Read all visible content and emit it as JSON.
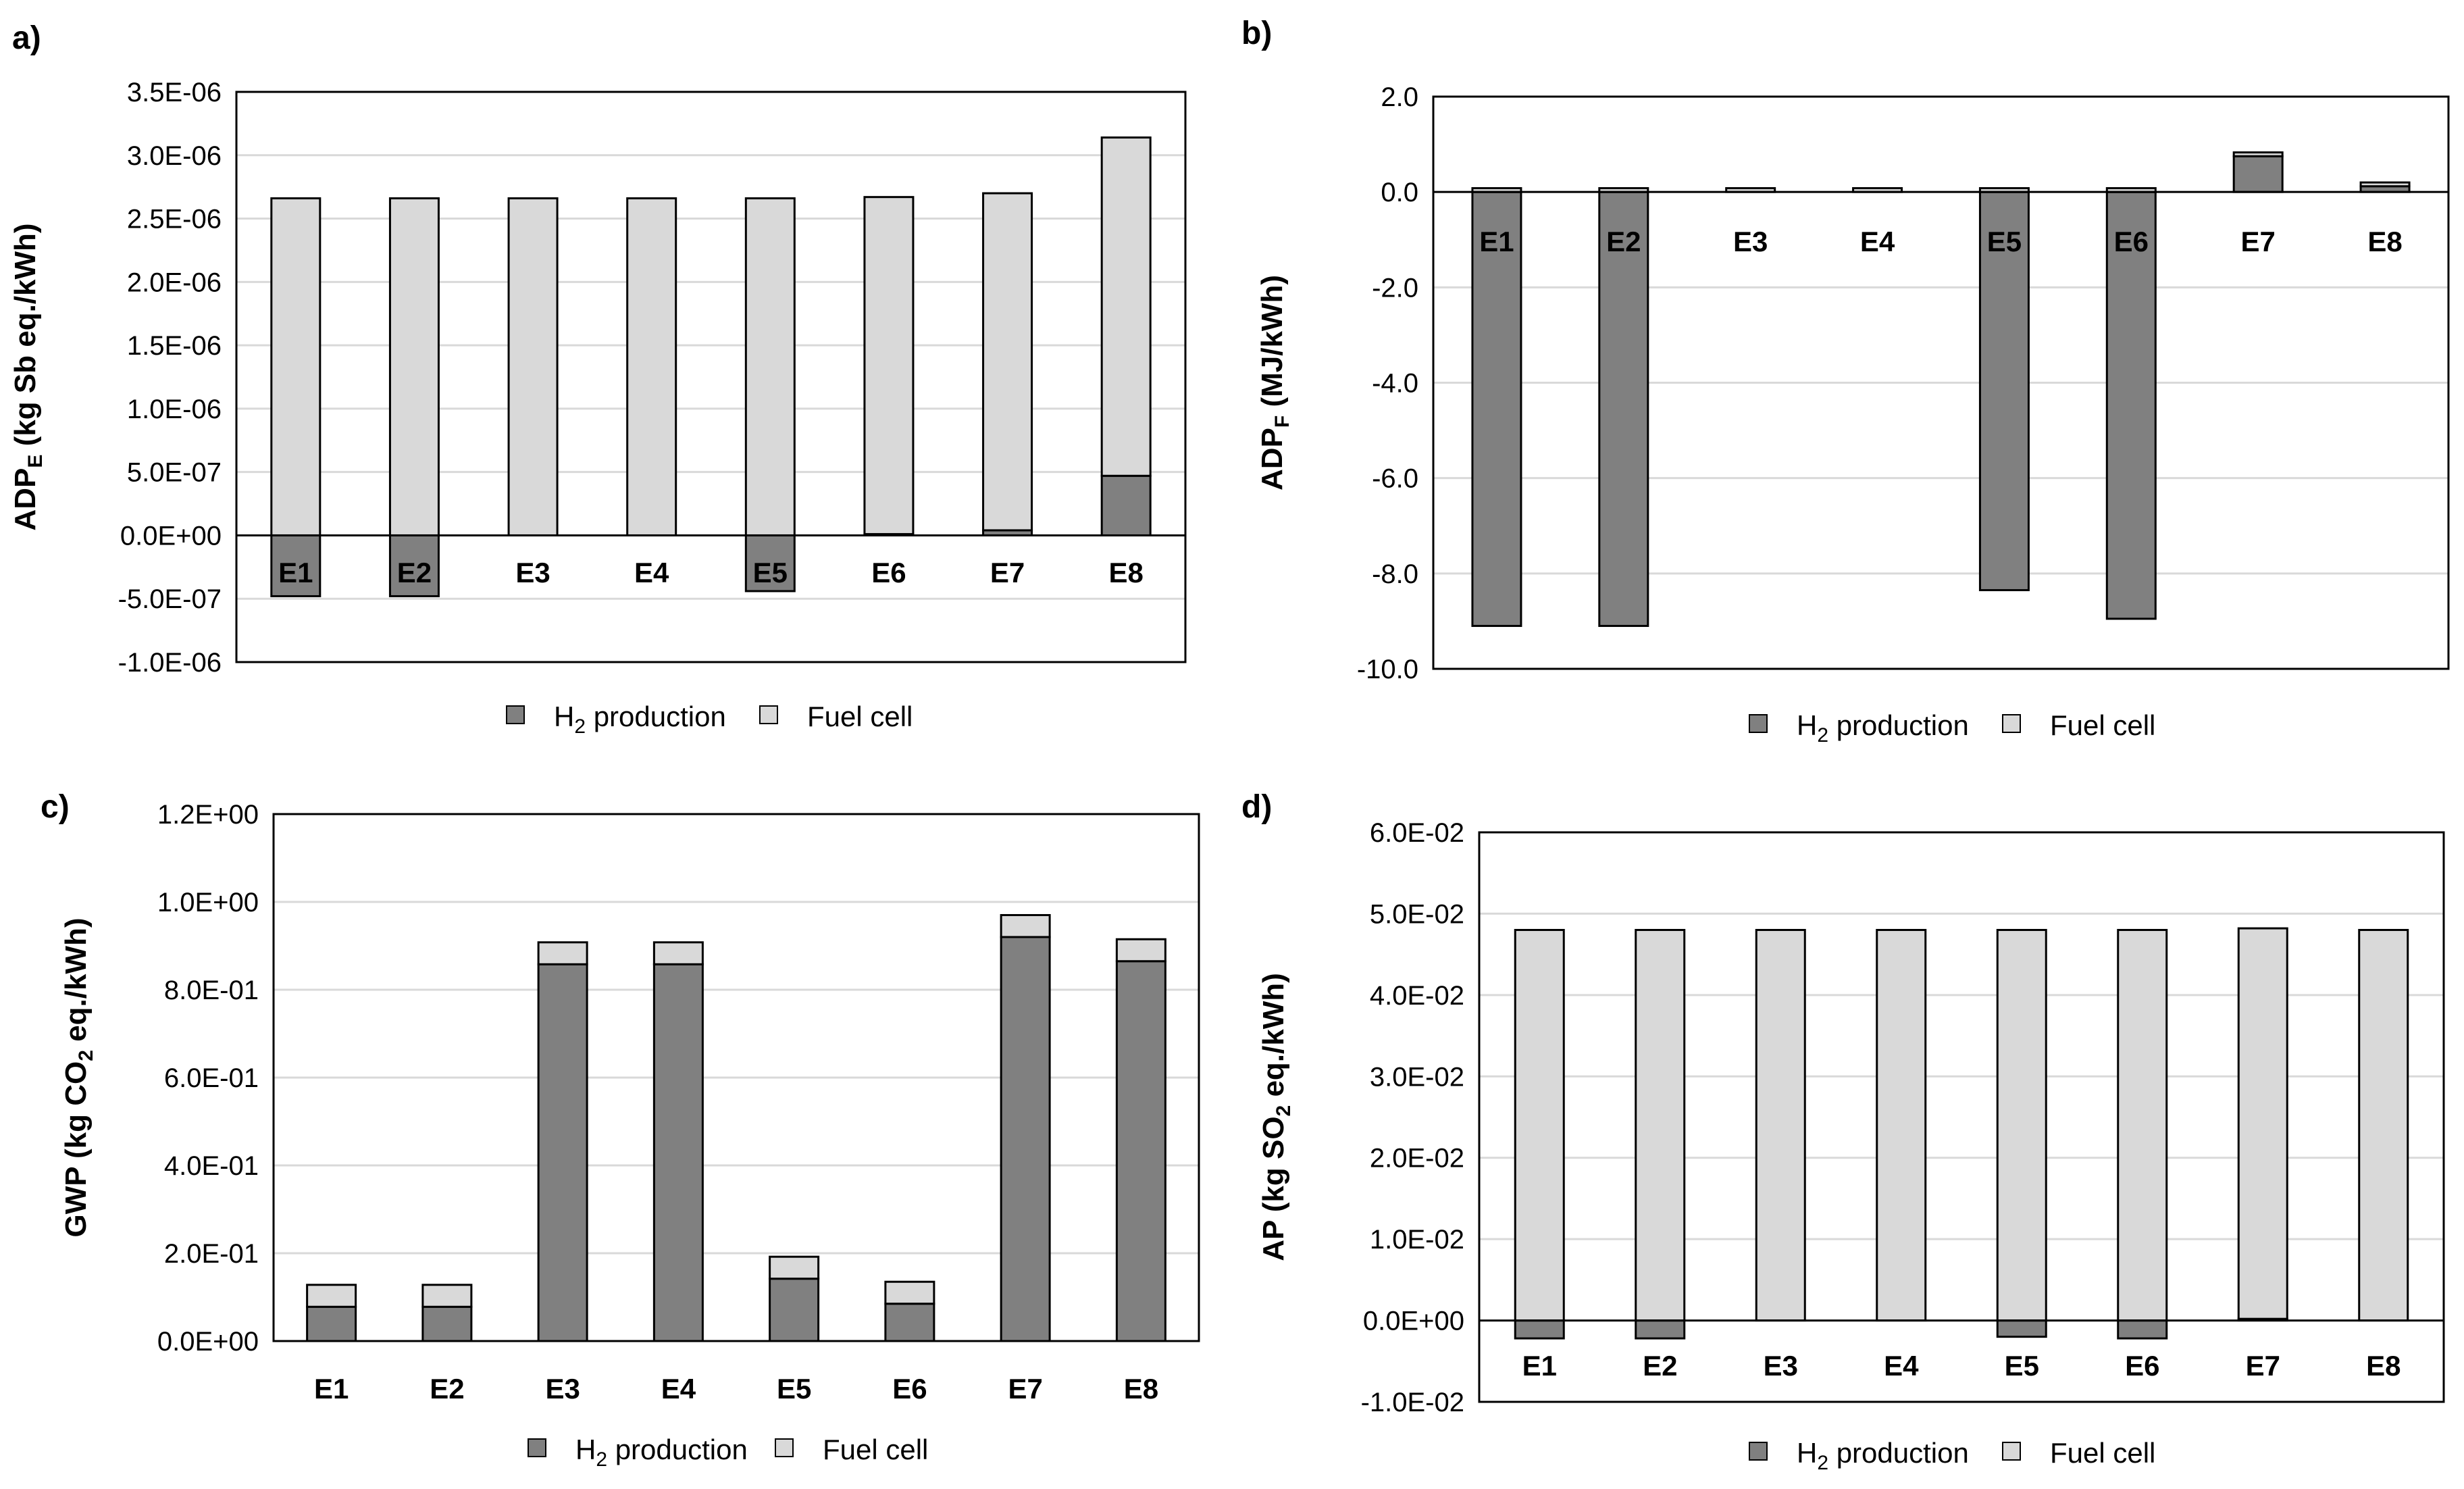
{
  "colors": {
    "h2": "#808080",
    "fc": "#d9d9d9",
    "grid": "#d9d9d9",
    "axis": "#000000"
  },
  "chart_data": [
    {
      "type": "bar",
      "stacked": true,
      "panel": "a)",
      "ylabel_main": "ADP",
      "ylabel_sub": "E",
      "ylabel_rest": " (kg Sb eq./kWh)",
      "ylim": [
        -1e-06,
        3.5e-06
      ],
      "yticks": [
        -1e-06,
        -5e-07,
        0,
        5e-07,
        1e-06,
        1.5e-06,
        2e-06,
        2.5e-06,
        3e-06,
        3.5e-06
      ],
      "ytick_labels": [
        "-1.0E-06",
        "-5.0E-07",
        "0.0E+00",
        "5.0E-07",
        "1.0E-06",
        "1.5E-06",
        "2.0E-06",
        "2.5E-06",
        "3.0E-06",
        "3.5E-06"
      ],
      "categories": [
        "E1",
        "E2",
        "E3",
        "E4",
        "E5",
        "E6",
        "E7",
        "E8"
      ],
      "category_label_pos": "inside",
      "series": [
        {
          "name": "H2 production",
          "values": [
            -4.8e-07,
            -4.8e-07,
            0,
            0,
            -4.4e-07,
            1e-08,
            4e-08,
            4.7e-07
          ]
        },
        {
          "name": "Fuel cell",
          "values": [
            2.66e-06,
            2.66e-06,
            2.66e-06,
            2.66e-06,
            2.66e-06,
            2.66e-06,
            2.66e-06,
            2.67e-06
          ]
        }
      ],
      "legend": {
        "h2_main": "H",
        "h2_sub": "2",
        "h2_rest": " production",
        "fc": "Fuel cell",
        "position": "bottom"
      }
    },
    {
      "type": "bar",
      "stacked": true,
      "panel": "b)",
      "ylabel_main": "ADP",
      "ylabel_sub": "F",
      "ylabel_rest": " (MJ/kWh)",
      "ylim": [
        -10.0,
        2.0
      ],
      "yticks": [
        -10,
        -8,
        -6,
        -4,
        -2,
        0,
        2
      ],
      "ytick_labels": [
        "-10.0",
        "-8.0",
        "-6.0",
        "-4.0",
        "-2.0",
        "0.0",
        "2.0"
      ],
      "categories": [
        "E1",
        "E2",
        "E3",
        "E4",
        "E5",
        "E6",
        "E7",
        "E8"
      ],
      "category_label_pos": "inside",
      "series": [
        {
          "name": "H2 production",
          "values": [
            -9.1,
            -9.1,
            0,
            0,
            -8.35,
            -8.95,
            0.75,
            0.12
          ]
        },
        {
          "name": "Fuel cell",
          "values": [
            0.08,
            0.08,
            0.08,
            0.08,
            0.08,
            0.08,
            0.08,
            0.08
          ]
        }
      ],
      "legend": {
        "h2_main": "H",
        "h2_sub": "2",
        "h2_rest": " production",
        "fc": "Fuel cell",
        "position": "bottom"
      }
    },
    {
      "type": "bar",
      "stacked": true,
      "panel": "c)",
      "ylabel_main": "GWP (kg CO",
      "ylabel_sub": "2",
      "ylabel_rest": " eq./kWh)",
      "ylim": [
        0,
        1.2
      ],
      "yticks": [
        0,
        0.2,
        0.4,
        0.6,
        0.8,
        1.0,
        1.2
      ],
      "ytick_labels": [
        "0.0E+00",
        "2.0E-01",
        "4.0E-01",
        "6.0E-01",
        "8.0E-01",
        "1.0E+00",
        "1.2E+00"
      ],
      "categories": [
        "E1",
        "E2",
        "E3",
        "E4",
        "E5",
        "E6",
        "E7",
        "E8"
      ],
      "category_label_pos": "below",
      "series": [
        {
          "name": "H2 production",
          "values": [
            0.078,
            0.078,
            0.858,
            0.858,
            0.142,
            0.085,
            0.92,
            0.865
          ]
        },
        {
          "name": "Fuel cell",
          "values": [
            0.05,
            0.05,
            0.05,
            0.05,
            0.05,
            0.05,
            0.05,
            0.05
          ]
        }
      ],
      "legend": {
        "h2_main": "H",
        "h2_sub": "2",
        "h2_rest": " production",
        "fc": "Fuel cell",
        "position": "bottom"
      }
    },
    {
      "type": "bar",
      "stacked": true,
      "panel": "d)",
      "ylabel_main": "AP (kg SO",
      "ylabel_sub": "2",
      "ylabel_rest": " eq./kWh)",
      "ylim": [
        -0.01,
        0.06
      ],
      "yticks": [
        -0.01,
        0,
        0.01,
        0.02,
        0.03,
        0.04,
        0.05,
        0.06
      ],
      "ytick_labels": [
        "-1.0E-02",
        "0.0E+00",
        "1.0E-02",
        "2.0E-02",
        "3.0E-02",
        "4.0E-02",
        "5.0E-02",
        "6.0E-02"
      ],
      "categories": [
        "E1",
        "E2",
        "E3",
        "E4",
        "E5",
        "E6",
        "E7",
        "E8"
      ],
      "category_label_pos": "inside",
      "series": [
        {
          "name": "H2 production",
          "values": [
            -0.0022,
            -0.0022,
            0,
            0,
            -0.002,
            -0.0022,
            0.0002,
            0
          ]
        },
        {
          "name": "Fuel cell",
          "values": [
            0.048,
            0.048,
            0.048,
            0.048,
            0.048,
            0.048,
            0.048,
            0.048
          ]
        }
      ],
      "legend": {
        "h2_main": "H",
        "h2_sub": "2",
        "h2_rest": " production",
        "fc": "Fuel cell",
        "position": "bottom"
      }
    }
  ]
}
